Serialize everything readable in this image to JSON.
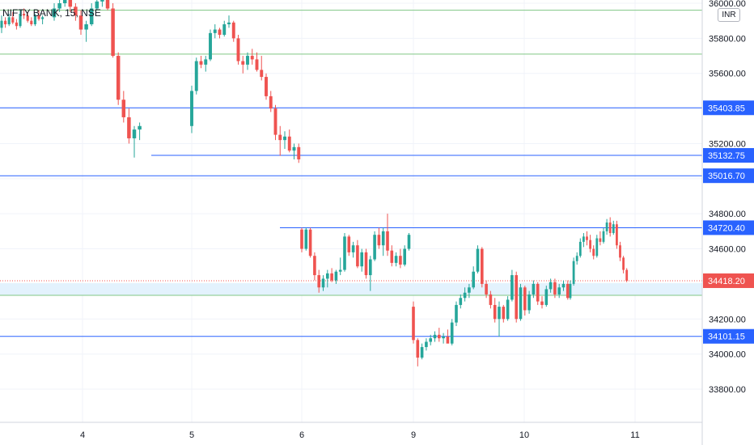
{
  "header": {
    "symbol_line": "NIFTY BANK, 15, NSE",
    "currency": "INR"
  },
  "chart_data": {
    "type": "candlestick",
    "title": "NIFTY BANK, 15, NSE",
    "ylim": [
      33600,
      36050
    ],
    "y_ticks": [
      33800,
      34000,
      34200,
      34400,
      34600,
      34800,
      35000,
      35200,
      35400,
      35600,
      35800,
      36000
    ],
    "y_tick_labels": [
      "33800.00",
      "34000.00",
      "34200.00",
      "34400.00",
      "34600.00",
      "34800.00",
      "35000.00",
      "35200.00",
      "35400.00",
      "35600.00",
      "35800.00",
      "36000.00"
    ],
    "x_ticks": [
      "4",
      "5",
      "6",
      "9",
      "10",
      "11"
    ],
    "grid": true,
    "colors": {
      "up": "#26a69a",
      "down": "#ef5350",
      "level": "#2962ff",
      "zone": "#81c784",
      "current": "#ef5350"
    },
    "last_price": {
      "value": 34418.2,
      "label": "34418.20"
    },
    "levels": [
      {
        "value": 35403.85,
        "label": "35403.85",
        "span": "full"
      },
      {
        "value": 35132.75,
        "label": "35132.75",
        "span": "from-day-5"
      },
      {
        "value": 35016.7,
        "label": "35016.70",
        "span": "full"
      },
      {
        "value": 34720.4,
        "label": "34720.40",
        "span": "from-day-6"
      },
      {
        "value": 34101.15,
        "label": "34101.15",
        "span": "full"
      }
    ],
    "zone_lines": [
      35960,
      35710,
      34335
    ],
    "demand_zone": [
      34335,
      34405
    ],
    "candles": [
      {
        "day": "3",
        "ohlc": [
          [
            35860,
            35930,
            35830,
            35900
          ],
          [
            35900,
            35920,
            35860,
            35880
          ],
          [
            35880,
            35940,
            35870,
            35920
          ],
          [
            35920,
            35950,
            35880,
            35890
          ],
          [
            35890,
            35910,
            35850,
            35870
          ],
          [
            35870,
            35960,
            35860,
            35940
          ],
          [
            35940,
            35970,
            35910,
            35930
          ],
          [
            35930,
            35950,
            35890,
            35900
          ],
          [
            35900,
            35920,
            35870,
            35880
          ],
          [
            35880,
            35940,
            35870,
            35930
          ],
          [
            35930,
            35960,
            35900,
            35910
          ],
          [
            35910,
            35930,
            35880,
            35920
          ]
        ]
      },
      {
        "day": "4",
        "ohlc": [
          [
            35920,
            36000,
            35900,
            35970
          ],
          [
            35970,
            36050,
            35950,
            36000
          ],
          [
            36000,
            36050,
            35980,
            36020
          ],
          [
            36020,
            36050,
            35950,
            35980
          ],
          [
            35980,
            36000,
            35900,
            35930
          ],
          [
            35930,
            35960,
            35820,
            35850
          ],
          [
            35850,
            35900,
            35780,
            35880
          ],
          [
            35880,
            36000,
            35870,
            35970
          ],
          [
            35970,
            36050,
            35960,
            36010
          ],
          [
            36010,
            36050,
            35980,
            36020
          ],
          [
            36020,
            36040,
            35960,
            35970
          ],
          [
            35970,
            36000,
            35690,
            35700
          ],
          [
            35700,
            35720,
            35420,
            35450
          ],
          [
            35450,
            35500,
            35320,
            35350
          ],
          [
            35350,
            35400,
            35200,
            35230
          ],
          [
            35230,
            35300,
            35120,
            35280
          ],
          [
            35280,
            35320,
            35220,
            35300
          ]
        ]
      },
      {
        "day": "5",
        "ohlc": [
          [
            35300,
            35530,
            35260,
            35500
          ],
          [
            35500,
            35690,
            35480,
            35670
          ],
          [
            35670,
            35700,
            35630,
            35650
          ],
          [
            35650,
            35700,
            35610,
            35680
          ],
          [
            35680,
            35850,
            35670,
            35830
          ],
          [
            35830,
            35880,
            35800,
            35850
          ],
          [
            35850,
            35860,
            35800,
            35820
          ],
          [
            35820,
            35900,
            35810,
            35880
          ],
          [
            35880,
            35930,
            35860,
            35890
          ],
          [
            35890,
            35900,
            35780,
            35800
          ],
          [
            35800,
            35820,
            35650,
            35670
          ],
          [
            35670,
            35700,
            35600,
            35650
          ],
          [
            35650,
            35720,
            35620,
            35700
          ],
          [
            35700,
            35740,
            35650,
            35680
          ],
          [
            35680,
            35720,
            35610,
            35620
          ],
          [
            35620,
            35700,
            35560,
            35580
          ],
          [
            35580,
            35600,
            35450,
            35470
          ],
          [
            35470,
            35500,
            35380,
            35400
          ],
          [
            35400,
            35420,
            35220,
            35250
          ],
          [
            35250,
            35300,
            35130,
            35220
          ],
          [
            35220,
            35270,
            35170,
            35240
          ],
          [
            35240,
            35280,
            35150,
            35160
          ],
          [
            35160,
            35200,
            35110,
            35180
          ],
          [
            35180,
            35200,
            35090,
            35110
          ]
        ]
      },
      {
        "day": "6",
        "ohlc": [
          [
            34710,
            34720,
            34580,
            34600
          ],
          [
            34600,
            34720,
            34590,
            34710
          ],
          [
            34710,
            34720,
            34550,
            34560
          ],
          [
            34560,
            34580,
            34420,
            34450
          ],
          [
            34450,
            34480,
            34350,
            34380
          ],
          [
            34380,
            34450,
            34360,
            34430
          ],
          [
            34430,
            34480,
            34380,
            34460
          ],
          [
            34460,
            34490,
            34410,
            34420
          ],
          [
            34420,
            34480,
            34400,
            34470
          ],
          [
            34470,
            34550,
            34450,
            34480
          ],
          [
            34480,
            34690,
            34470,
            34670
          ],
          [
            34670,
            34680,
            34560,
            34580
          ],
          [
            34580,
            34640,
            34550,
            34620
          ],
          [
            34620,
            34650,
            34490,
            34500
          ],
          [
            34500,
            34600,
            34470,
            34580
          ],
          [
            34580,
            34600,
            34430,
            34450
          ],
          [
            34450,
            34560,
            34360,
            34540
          ],
          [
            34540,
            34700,
            34530,
            34680
          ],
          [
            34680,
            34720,
            34600,
            34620
          ],
          [
            34620,
            34720,
            34560,
            34700
          ],
          [
            34700,
            34800,
            34560,
            34590
          ],
          [
            34590,
            34620,
            34500,
            34520
          ],
          [
            34520,
            34580,
            34500,
            34560
          ],
          [
            34560,
            34600,
            34490,
            34510
          ],
          [
            34510,
            34620,
            34500,
            34600
          ],
          [
            34600,
            34690,
            34590,
            34680
          ]
        ]
      },
      {
        "day": "9",
        "ohlc": [
          [
            34270,
            34300,
            34060,
            34080
          ],
          [
            34080,
            34090,
            33930,
            33980
          ],
          [
            33980,
            34060,
            33970,
            34040
          ],
          [
            34040,
            34090,
            34020,
            34070
          ],
          [
            34070,
            34110,
            34050,
            34090
          ],
          [
            34090,
            34130,
            34070,
            34110
          ],
          [
            34110,
            34150,
            34070,
            34090
          ],
          [
            34090,
            34120,
            34060,
            34100
          ],
          [
            34100,
            34140,
            34080,
            34060
          ],
          [
            34060,
            34200,
            34050,
            34180
          ],
          [
            34180,
            34300,
            34160,
            34280
          ],
          [
            34280,
            34340,
            34260,
            34320
          ],
          [
            34320,
            34380,
            34300,
            34350
          ],
          [
            34350,
            34400,
            34320,
            34380
          ],
          [
            34380,
            34500,
            34370,
            34470
          ],
          [
            34470,
            34620,
            34460,
            34600
          ],
          [
            34600,
            34610,
            34380,
            34400
          ],
          [
            34400,
            34420,
            34320,
            34340
          ],
          [
            34340,
            34360,
            34260,
            34280
          ],
          [
            34280,
            34320,
            34180,
            34200
          ],
          [
            34200,
            34300,
            34100,
            34270
          ],
          [
            34270,
            34280,
            34180,
            34200
          ],
          [
            34200,
            34330,
            34190,
            34310
          ],
          [
            34310,
            34480,
            34300,
            34450
          ],
          [
            34450,
            34470,
            34180,
            34200
          ],
          [
            34200,
            34400,
            34190,
            34380
          ],
          [
            34380,
            34390,
            34220,
            34250
          ],
          [
            34250,
            34360,
            34230,
            34340
          ],
          [
            34340,
            34420,
            34320,
            34400
          ],
          [
            34400,
            34410,
            34280,
            34300
          ],
          [
            34300,
            34330,
            34260,
            34280
          ],
          [
            34280,
            34390,
            34270,
            34370
          ],
          [
            34370,
            34430,
            34350,
            34410
          ],
          [
            34410,
            34430,
            34320,
            34340
          ],
          [
            34340,
            34400,
            34320,
            34380
          ],
          [
            34380,
            34420,
            34360,
            34400
          ],
          [
            34400,
            34420,
            34310,
            34320
          ]
        ]
      },
      {
        "day": "10",
        "ohlc": [
          [
            34320,
            34420,
            34310,
            34400
          ],
          [
            34400,
            34550,
            34390,
            34530
          ],
          [
            34530,
            34580,
            34510,
            34560
          ],
          [
            34560,
            34660,
            34550,
            34640
          ],
          [
            34640,
            34690,
            34610,
            34670
          ],
          [
            34670,
            34700,
            34620,
            34650
          ],
          [
            34650,
            34680,
            34580,
            34600
          ],
          [
            34600,
            34620,
            34540,
            34560
          ],
          [
            34560,
            34680,
            34550,
            34660
          ],
          [
            34660,
            34700,
            34620,
            34640
          ],
          [
            34640,
            34720,
            34630,
            34700
          ],
          [
            34700,
            34770,
            34680,
            34750
          ],
          [
            34750,
            34780,
            34670,
            34690
          ],
          [
            34690,
            34760,
            34680,
            34740
          ],
          [
            34740,
            34760,
            34600,
            34620
          ],
          [
            34620,
            34640,
            34530,
            34550
          ],
          [
            34550,
            34560,
            34460,
            34480
          ],
          [
            34480,
            34490,
            34410,
            34418
          ]
        ]
      }
    ]
  }
}
